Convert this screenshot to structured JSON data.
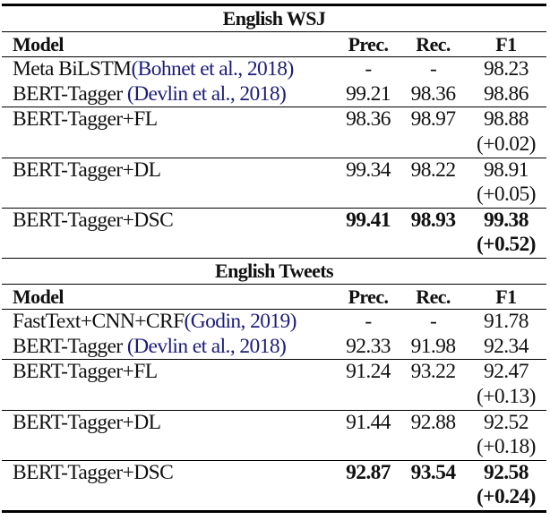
{
  "sections": [
    {
      "title": "English WSJ",
      "header": {
        "model": "Model",
        "prec": "Prec.",
        "rec": "Rec.",
        "f1": "F1"
      },
      "rows": [
        {
          "model": "Meta BiLSTM",
          "cite": "(Bohnet et al., 2018)",
          "prec": "-",
          "rec": "-",
          "f1": "98.23",
          "delta": "",
          "bold": false,
          "group_start": true
        },
        {
          "model": "BERT-Tagger ",
          "cite": "(Devlin et al., 2018)",
          "prec": "99.21",
          "rec": "98.36",
          "f1": "98.86",
          "delta": "",
          "bold": false,
          "group_start": false
        },
        {
          "model": "BERT-Tagger+FL",
          "cite": "",
          "prec": "98.36",
          "rec": "98.97",
          "f1": "98.88",
          "delta": "(+0.02)",
          "bold": false,
          "group_start": true
        },
        {
          "model": "BERT-Tagger+DL",
          "cite": "",
          "prec": "99.34",
          "rec": "98.22",
          "f1": "98.91",
          "delta": "(+0.05)",
          "bold": false,
          "group_start": true
        },
        {
          "model": "BERT-Tagger+DSC",
          "cite": "",
          "prec": "99.41",
          "rec": "98.93",
          "f1": "99.38",
          "delta": "(+0.52)",
          "bold": true,
          "group_start": true
        }
      ]
    },
    {
      "title": "English Tweets",
      "header": {
        "model": "Model",
        "prec": "Prec.",
        "rec": "Rec.",
        "f1": "F1"
      },
      "rows": [
        {
          "model": "FastText+CNN+CRF",
          "cite": "(Godin, 2019)",
          "prec": "-",
          "rec": "-",
          "f1": "91.78",
          "delta": "",
          "bold": false,
          "group_start": true
        },
        {
          "model": "BERT-Tagger ",
          "cite": "(Devlin et al., 2018)",
          "prec": "92.33",
          "rec": "91.98",
          "f1": "92.34",
          "delta": "",
          "bold": false,
          "group_start": false
        },
        {
          "model": "BERT-Tagger+FL",
          "cite": "",
          "prec": "91.24",
          "rec": "93.22",
          "f1": "92.47",
          "delta": "(+0.13)",
          "bold": false,
          "group_start": true
        },
        {
          "model": "BERT-Tagger+DL",
          "cite": "",
          "prec": "91.44",
          "rec": "92.88",
          "f1": "92.52",
          "delta": "(+0.18)",
          "bold": false,
          "group_start": true
        },
        {
          "model": "BERT-Tagger+DSC",
          "cite": "",
          "prec": "92.87",
          "rec": "93.54",
          "f1": "92.58",
          "delta": "(+0.24)",
          "bold": true,
          "group_start": true
        }
      ]
    }
  ],
  "colors": {
    "citation": "#1c1c7a"
  }
}
